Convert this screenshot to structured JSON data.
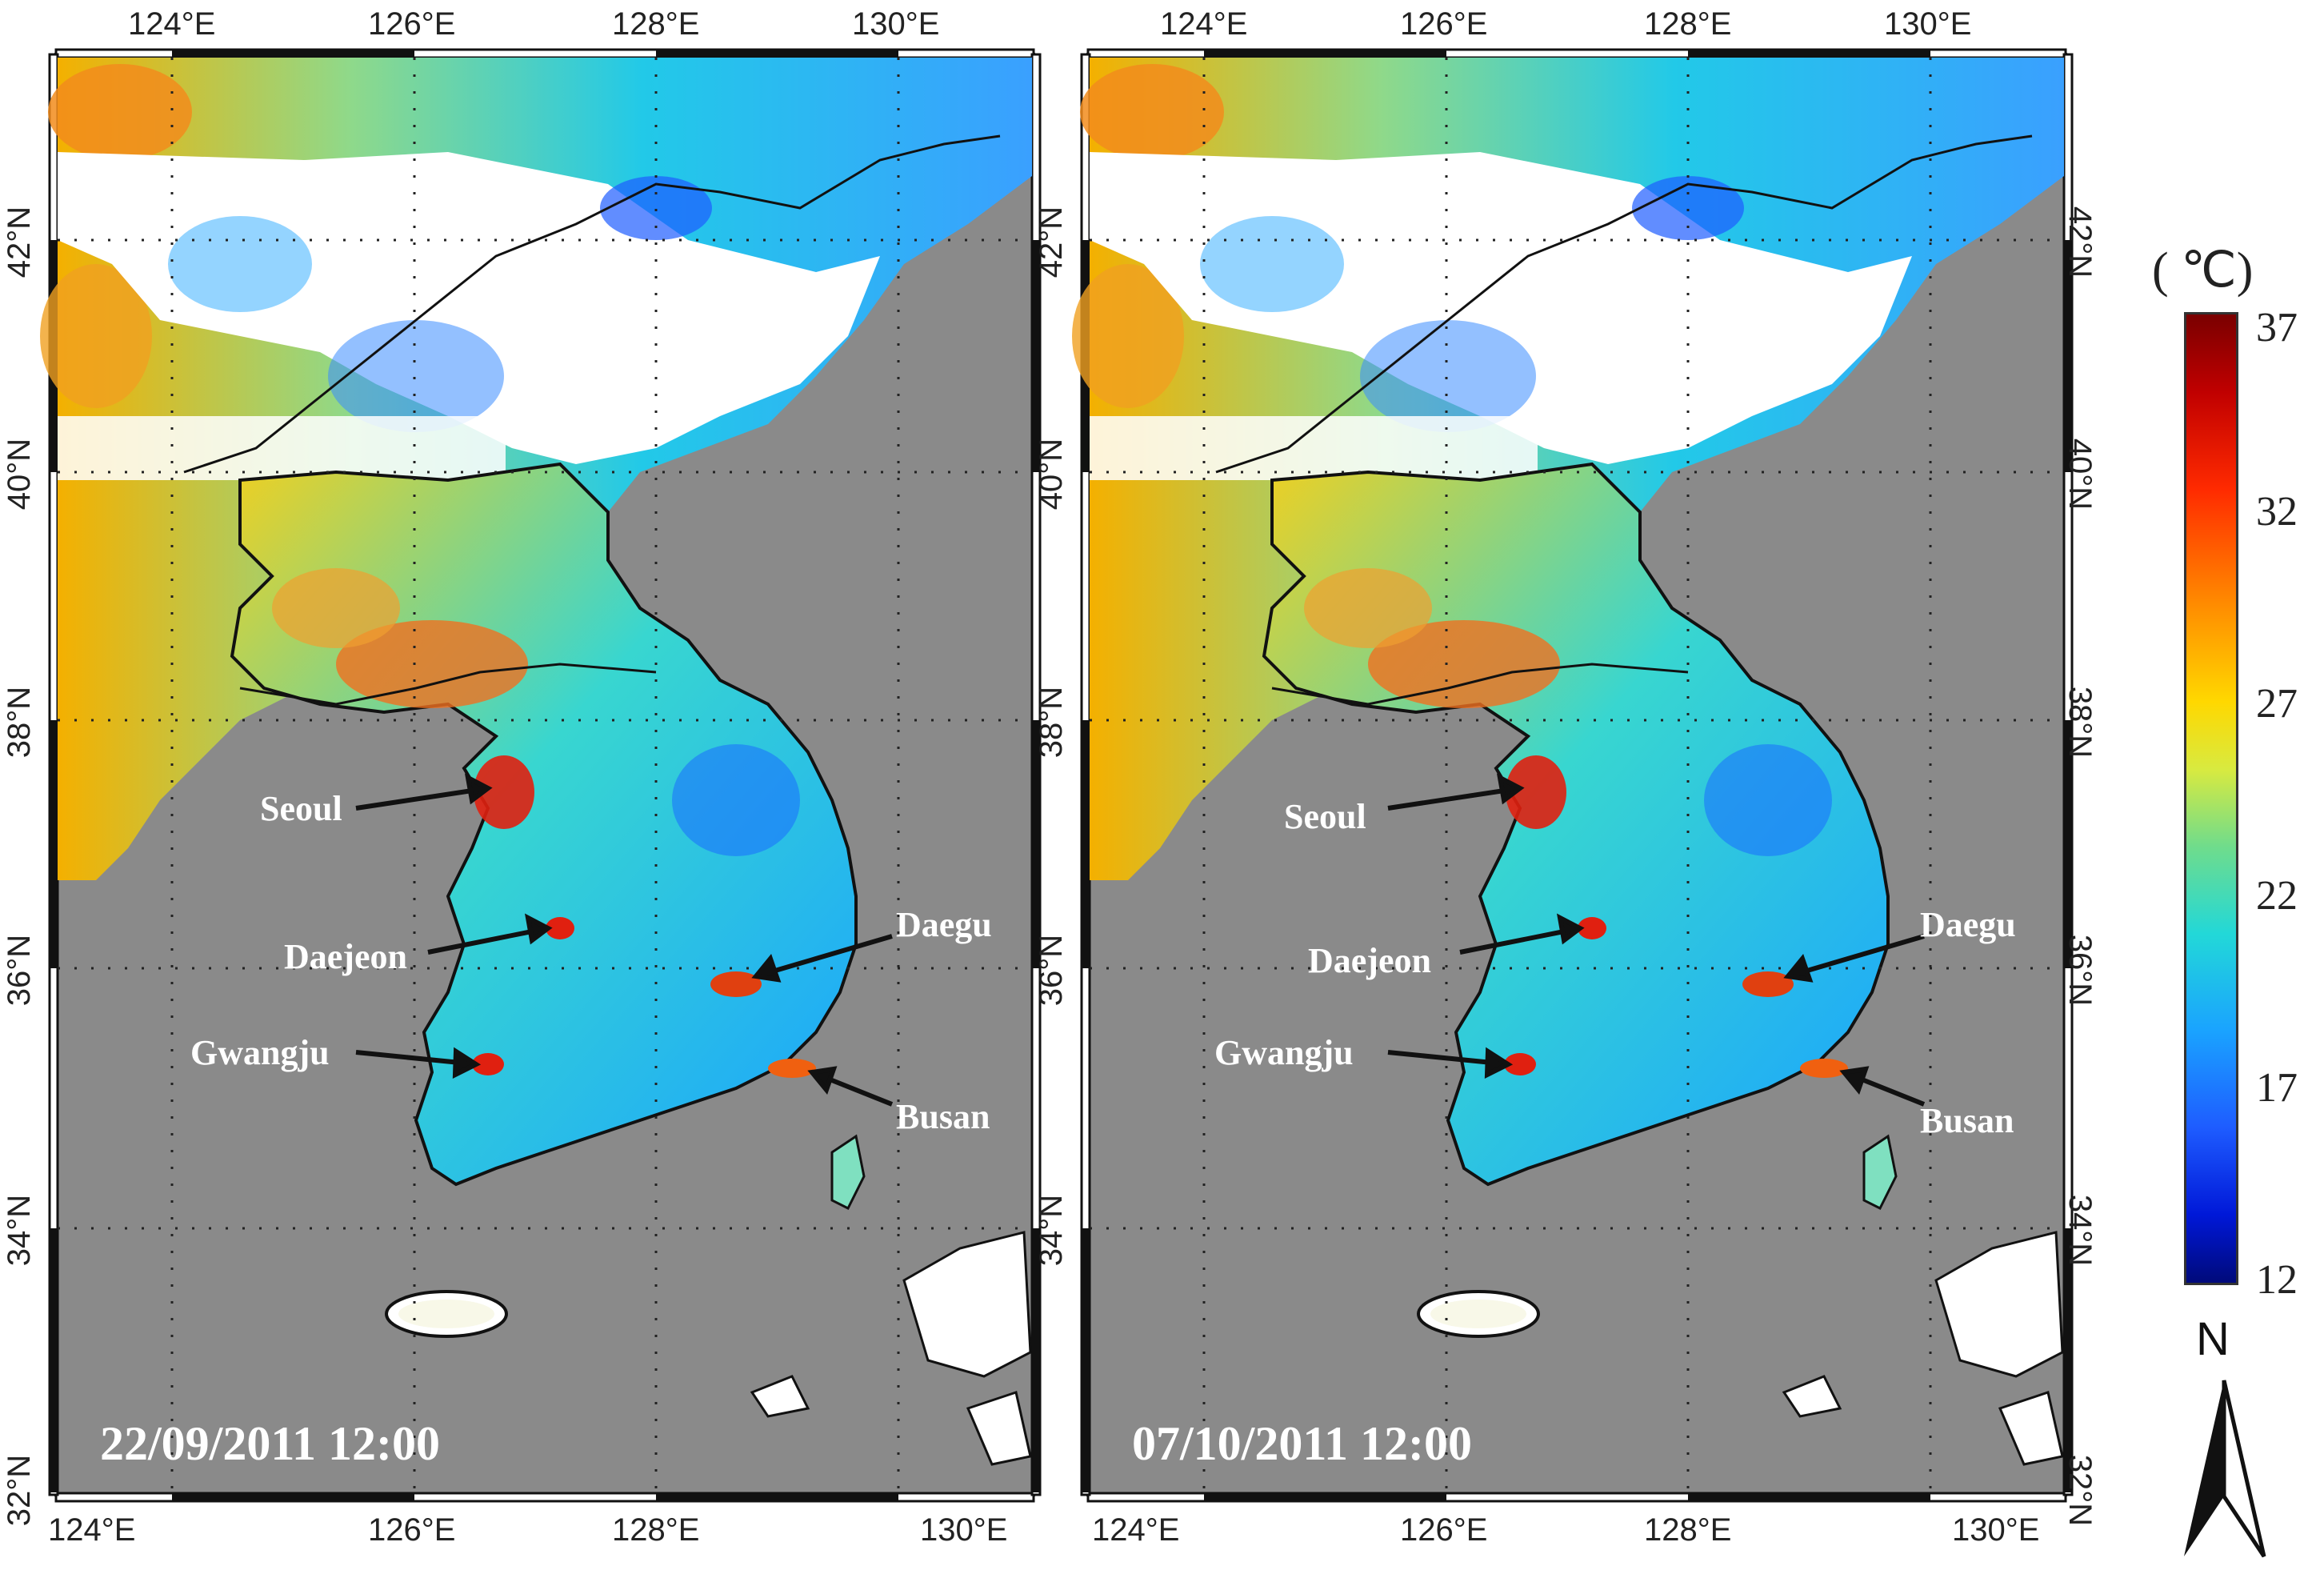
{
  "panels": [
    {
      "date_label": "22/09/2011 12:00",
      "lon_ticks": [
        "124°E",
        "126°E",
        "128°E",
        "130°E"
      ],
      "lat_ticks": [
        "42°N",
        "40°N",
        "38°N",
        "36°N",
        "34°N",
        "32°N"
      ],
      "cities": [
        "Seoul",
        "Daejeon",
        "Daegu",
        "Gwangju",
        "Busan"
      ]
    },
    {
      "date_label": "07/10/2011 12:00",
      "lon_ticks": [
        "124°E",
        "126°E",
        "128°E",
        "130°E"
      ],
      "lat_ticks": [
        "42°N",
        "40°N",
        "38°N",
        "36°N",
        "34°N",
        "32°N"
      ],
      "cities": [
        "Seoul",
        "Daejeon",
        "Daegu",
        "Gwangju",
        "Busan"
      ]
    }
  ],
  "colorbar": {
    "unit": "( ℃)",
    "ticks": [
      "37",
      "32",
      "27",
      "22",
      "17",
      "12"
    ],
    "min": 12,
    "max": 37,
    "colors": {
      "low": "#000a7a",
      "mid": "#22d8d8",
      "high": "#7a0000"
    }
  },
  "north_arrow": {
    "label": "N"
  },
  "colors": {
    "sea": "#8a8a8a",
    "cloud": "#ffffff",
    "coast": "#111111"
  }
}
